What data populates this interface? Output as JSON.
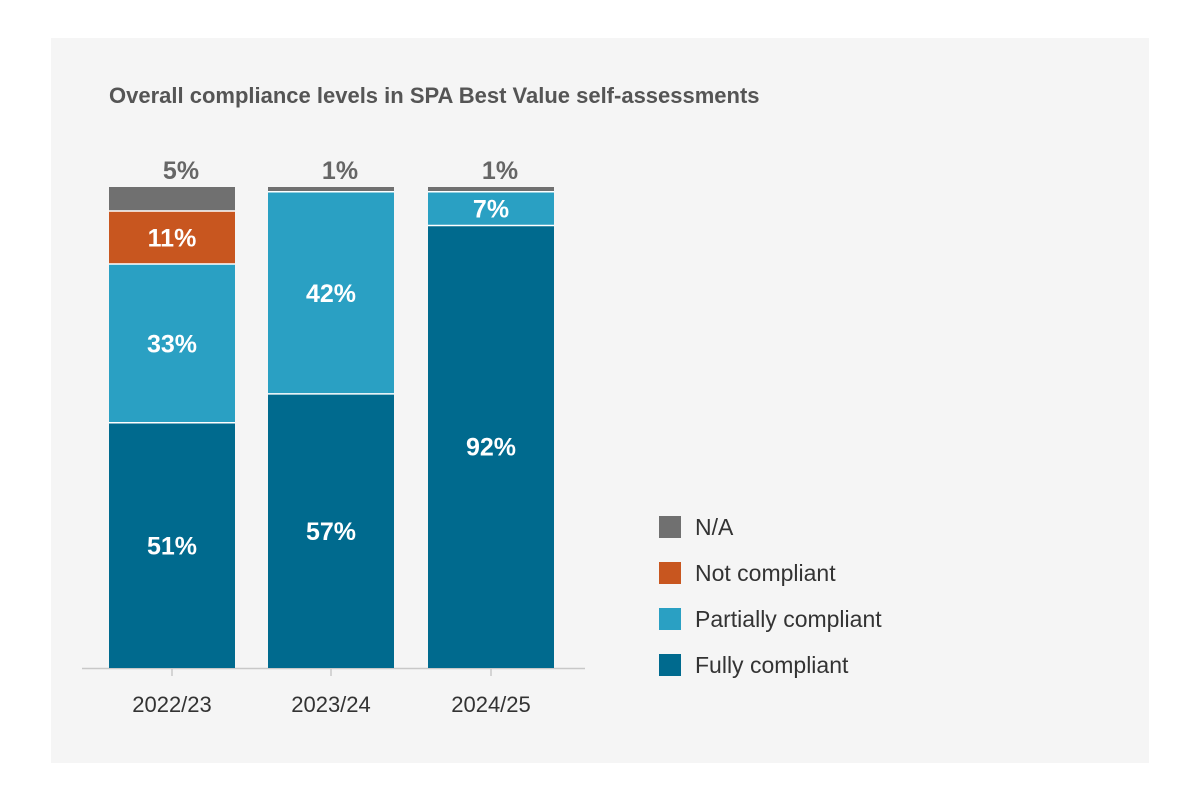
{
  "chart_data": {
    "type": "bar",
    "stacked": true,
    "title": "Overall compliance levels in SPA Best Value self-assessments",
    "categories": [
      "2022/23",
      "2023/24",
      "2024/25"
    ],
    "ylim": [
      0,
      100
    ],
    "unit": "%",
    "series": [
      {
        "name": "Fully compliant",
        "color": "#006a8e",
        "values": [
          51,
          57,
          92
        ],
        "labels": [
          "51%",
          "57%",
          "92%"
        ]
      },
      {
        "name": "Partially compliant",
        "color": "#2aa0c3",
        "values": [
          33,
          42,
          7
        ],
        "labels": [
          "33%",
          "42%",
          "7%"
        ]
      },
      {
        "name": "Not compliant",
        "color": "#c8561f",
        "values": [
          11,
          0,
          0
        ],
        "labels": [
          "11%",
          "",
          ""
        ]
      },
      {
        "name": "N/A",
        "color": "#707070",
        "values": [
          5,
          1,
          1
        ],
        "labels": [
          "5%",
          "1%",
          "1%"
        ]
      }
    ],
    "legend_order": [
      "N/A",
      "Not compliant",
      "Partially compliant",
      "Fully compliant"
    ],
    "legend_position": "right"
  }
}
